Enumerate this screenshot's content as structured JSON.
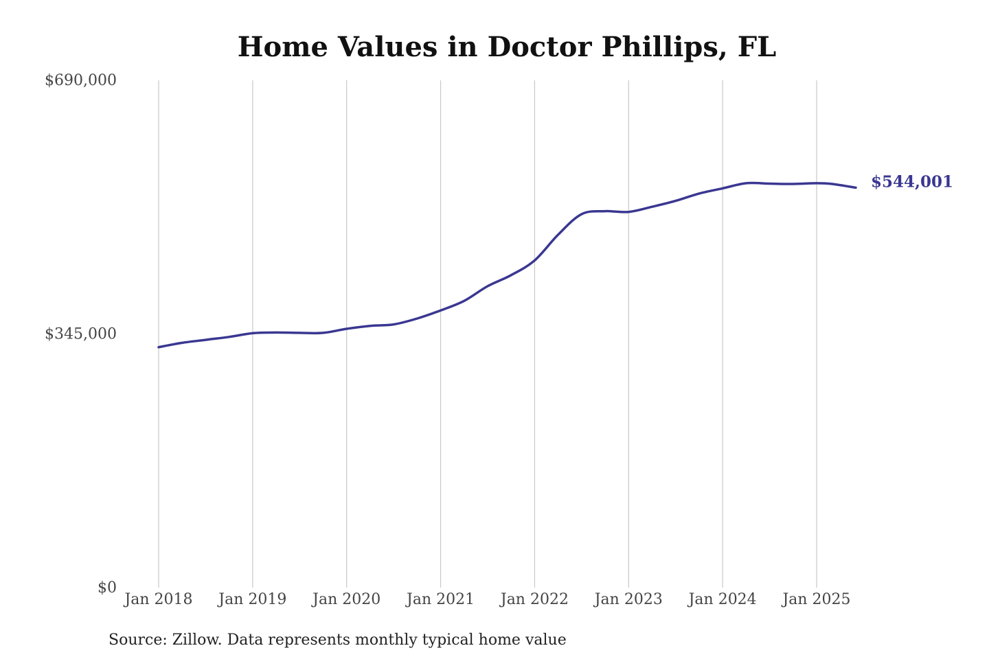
{
  "chart_data": {
    "type": "line",
    "title": "Home Values in Doctor Phillips, FL",
    "xlabel": "",
    "ylabel": "",
    "x_ticks": [
      "Jan 2018",
      "Jan 2019",
      "Jan 2020",
      "Jan 2021",
      "Jan 2022",
      "Jan 2023",
      "Jan 2024",
      "Jan 2025"
    ],
    "y_ticks": [
      "$690,000",
      "$345,000",
      "$0"
    ],
    "ylim": [
      0,
      690000
    ],
    "xlim": [
      "2018-01",
      "2025-06"
    ],
    "grid": "vertical",
    "legend": "none",
    "series": [
      {
        "color": "#3a3791",
        "points": [
          [
            "2018-01",
            327000
          ],
          [
            "2018-04",
            333000
          ],
          [
            "2018-07",
            337000
          ],
          [
            "2018-10",
            341000
          ],
          [
            "2019-01",
            346000
          ],
          [
            "2019-04",
            347000
          ],
          [
            "2019-07",
            346500
          ],
          [
            "2019-10",
            346500
          ],
          [
            "2020-01",
            352000
          ],
          [
            "2020-04",
            356000
          ],
          [
            "2020-07",
            358000
          ],
          [
            "2020-10",
            366000
          ],
          [
            "2021-01",
            377000
          ],
          [
            "2021-04",
            390000
          ],
          [
            "2021-07",
            410000
          ],
          [
            "2021-10",
            425000
          ],
          [
            "2022-01",
            445000
          ],
          [
            "2022-04",
            480000
          ],
          [
            "2022-07",
            508000
          ],
          [
            "2022-10",
            512000
          ],
          [
            "2023-01",
            511000
          ],
          [
            "2023-04",
            518000
          ],
          [
            "2023-07",
            526000
          ],
          [
            "2023-10",
            536000
          ],
          [
            "2024-01",
            543000
          ],
          [
            "2024-04",
            550000
          ],
          [
            "2024-07",
            549500
          ],
          [
            "2024-10",
            549000
          ],
          [
            "2025-01",
            550000
          ],
          [
            "2025-03",
            549000
          ],
          [
            "2025-06",
            544001
          ]
        ]
      }
    ],
    "end_label": "$544,001",
    "annotation": "Source: Zillow. Data represents monthly typical home value"
  }
}
